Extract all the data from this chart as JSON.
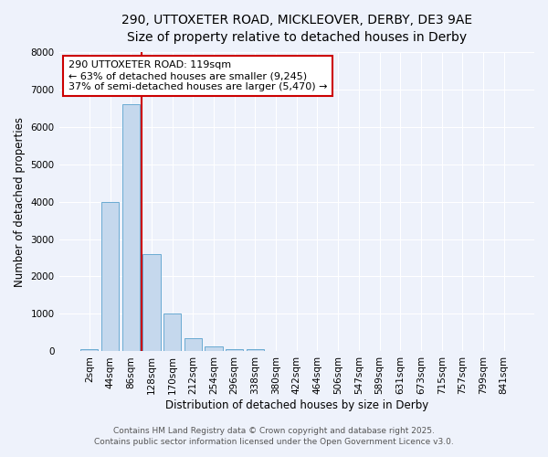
{
  "title_line1": "290, UTTOXETER ROAD, MICKLEOVER, DERBY, DE3 9AE",
  "title_line2": "Size of property relative to detached houses in Derby",
  "xlabel": "Distribution of detached houses by size in Derby",
  "ylabel": "Number of detached properties",
  "categories": [
    "2sqm",
    "44sqm",
    "86sqm",
    "128sqm",
    "170sqm",
    "212sqm",
    "254sqm",
    "296sqm",
    "338sqm",
    "380sqm",
    "422sqm",
    "464sqm",
    "506sqm",
    "547sqm",
    "589sqm",
    "631sqm",
    "673sqm",
    "715sqm",
    "757sqm",
    "799sqm",
    "841sqm"
  ],
  "values": [
    50,
    4000,
    6600,
    2600,
    1000,
    350,
    130,
    60,
    50,
    0,
    0,
    0,
    0,
    0,
    0,
    0,
    0,
    0,
    0,
    0,
    0
  ],
  "bar_color": "#c5d8ed",
  "bar_edgecolor": "#6aabd2",
  "vline_x_index": 2.5,
  "vline_color": "#cc0000",
  "ylim": [
    0,
    8000
  ],
  "yticks": [
    0,
    1000,
    2000,
    3000,
    4000,
    5000,
    6000,
    7000,
    8000
  ],
  "annotation_title": "290 UTTOXETER ROAD: 119sqm",
  "annotation_line2": "← 63% of detached houses are smaller (9,245)",
  "annotation_line3": "37% of semi-detached houses are larger (5,470) →",
  "annotation_box_color": "#ffffff",
  "annotation_border_color": "#cc0000",
  "footnote1": "Contains HM Land Registry data © Crown copyright and database right 2025.",
  "footnote2": "Contains public sector information licensed under the Open Government Licence v3.0.",
  "background_color": "#eef2fb",
  "grid_color": "#ffffff",
  "title_fontsize": 10,
  "subtitle_fontsize": 9,
  "axis_label_fontsize": 8.5,
  "tick_fontsize": 7.5,
  "annotation_fontsize": 8,
  "footnote_fontsize": 6.5
}
